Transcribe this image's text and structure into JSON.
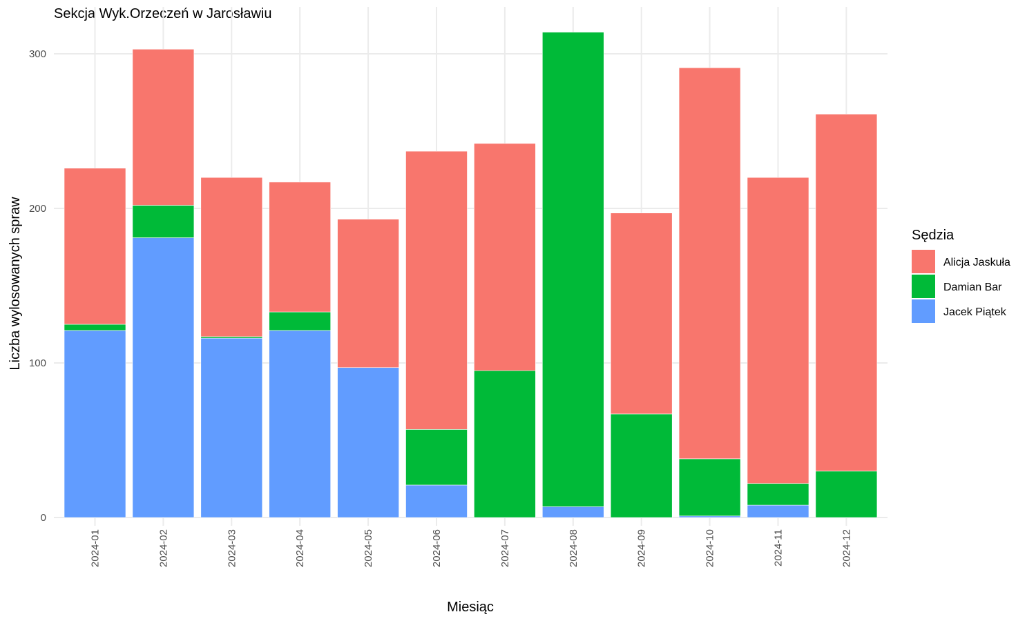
{
  "chart_data": {
    "type": "bar",
    "stacked": true,
    "title": "Sekcja Wyk.Orzeczeń w Jarosławiu",
    "xlabel": "Miesiąc",
    "ylabel": "Liczba wylosowanych spraw",
    "ylim": [
      0,
      330
    ],
    "yticks": [
      0,
      100,
      200,
      300
    ],
    "grid": true,
    "categories": [
      "2024-01",
      "2024-02",
      "2024-03",
      "2024-04",
      "2024-05",
      "2024-06",
      "2024-07",
      "2024-08",
      "2024-09",
      "2024-10",
      "2024-11",
      "2024-12"
    ],
    "series": [
      {
        "name": "Jacek Piątek",
        "color": "#619CFF",
        "values": [
          121,
          181,
          116,
          121,
          97,
          21,
          0,
          7,
          0,
          1,
          8,
          0
        ]
      },
      {
        "name": "Damian Bar",
        "color": "#00BA38",
        "values": [
          4,
          21,
          1,
          12,
          0,
          36,
          95,
          307,
          67,
          37,
          14,
          30
        ]
      },
      {
        "name": "Alicja Jaskuła",
        "color": "#F8766D",
        "values": [
          101,
          101,
          103,
          84,
          96,
          180,
          147,
          0,
          130,
          253,
          198,
          231
        ]
      }
    ],
    "legend": {
      "title": "Sędzia",
      "position": "right",
      "order": [
        "Alicja Jaskuła",
        "Damian Bar",
        "Jacek Piątek"
      ]
    }
  }
}
